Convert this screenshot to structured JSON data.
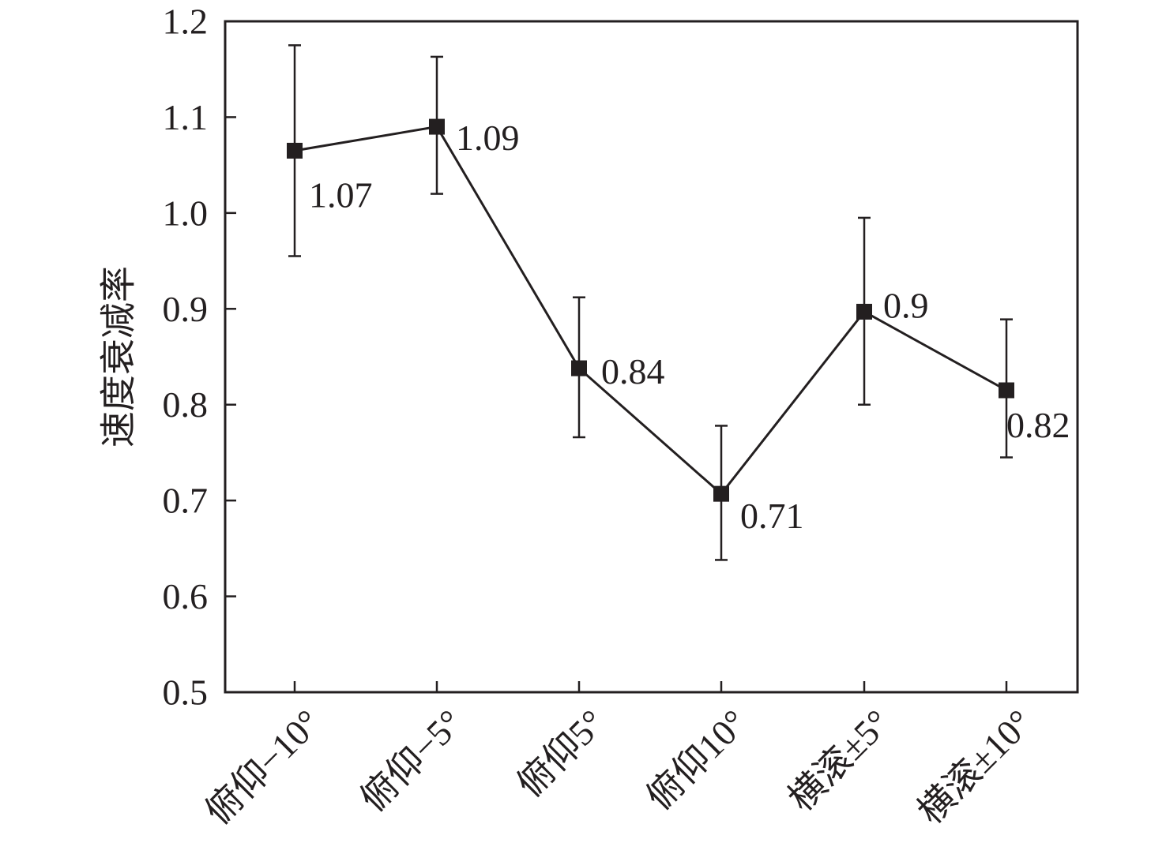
{
  "chart_data": {
    "type": "line",
    "ylabel": "速度衰减率",
    "xlabel": "",
    "title": "",
    "ylim": [
      0.5,
      1.2
    ],
    "yticks": [
      "0.5",
      "0.6",
      "0.7",
      "0.8",
      "0.9",
      "1.0",
      "1.1",
      "1.2"
    ],
    "categories": [
      "俯仰−10°",
      "俯仰−5°",
      "俯仰5°",
      "俯仰10°",
      "横滚±5°",
      "横滚±10°"
    ],
    "series": [
      {
        "values": [
          1.065,
          1.09,
          0.838,
          0.707,
          0.897,
          0.815
        ],
        "error_low": [
          0.955,
          1.02,
          0.766,
          0.638,
          0.8,
          0.745
        ],
        "error_high": [
          1.175,
          1.163,
          0.912,
          0.778,
          0.995,
          0.889
        ],
        "data_labels": [
          "1.07",
          "1.09",
          "0.84",
          "0.71",
          "0.9",
          "0.82"
        ],
        "marker": "square",
        "color": "#231f20"
      }
    ],
    "grid": false,
    "legend": "none"
  }
}
